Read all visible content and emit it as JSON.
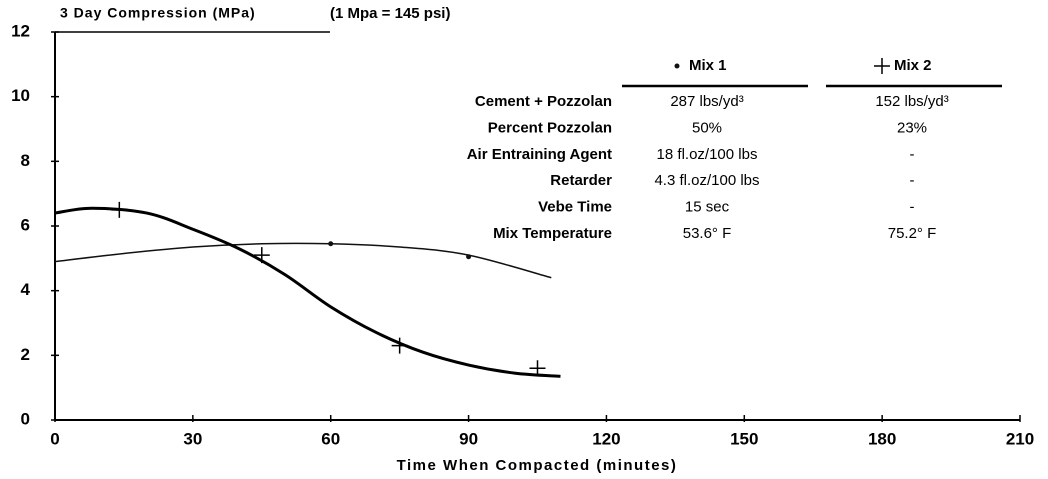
{
  "chart_data": {
    "type": "line",
    "title": "3 Day Compression (MPa)",
    "subtitle": "(1 Mpa = 145 psi)",
    "x_label": "Time When Compacted (minutes)",
    "xlim": [
      0,
      210
    ],
    "xticks": [
      0,
      30,
      60,
      90,
      120,
      150,
      180,
      210
    ],
    "ylim": [
      0,
      12
    ],
    "yticks": [
      0,
      2,
      4,
      6,
      8,
      10,
      12
    ],
    "series": [
      {
        "name": "Mix 1",
        "color": "#111111",
        "marker": "dot",
        "line_width": 1.5,
        "x": [
          0,
          15,
          30,
          45,
          60,
          75,
          90,
          108
        ],
        "values": [
          4.9,
          5.15,
          5.35,
          5.45,
          5.45,
          5.35,
          5.1,
          4.4
        ],
        "markers": {
          "x": [
            60,
            90
          ],
          "values": [
            5.45,
            5.05
          ]
        }
      },
      {
        "name": "Mix 2",
        "color": "#000000",
        "marker": "plus",
        "line_width": 3,
        "x": [
          0,
          8,
          20,
          30,
          40,
          50,
          60,
          70,
          80,
          90,
          100,
          110
        ],
        "values": [
          6.4,
          6.55,
          6.4,
          5.9,
          5.3,
          4.5,
          3.5,
          2.7,
          2.1,
          1.7,
          1.45,
          1.35
        ],
        "markers": {
          "x": [
            14,
            45,
            75,
            105
          ],
          "values": [
            6.5,
            5.1,
            2.3,
            1.6
          ]
        }
      }
    ],
    "table": {
      "rows": [
        [
          "Cement + Pozzolan",
          "287 lbs/yd³",
          "152 lbs/yd³"
        ],
        [
          "Percent Pozzolan",
          "50%",
          "23%"
        ],
        [
          "Air Entraining Agent",
          "18 fl.oz/100 lbs",
          "-"
        ],
        [
          "Retarder",
          "4.3 fl.oz/100 lbs",
          "-"
        ],
        [
          "Vebe Time",
          "15 sec",
          "-"
        ],
        [
          "Mix Temperature",
          "53.6° F",
          "75.2° F"
        ]
      ]
    }
  }
}
